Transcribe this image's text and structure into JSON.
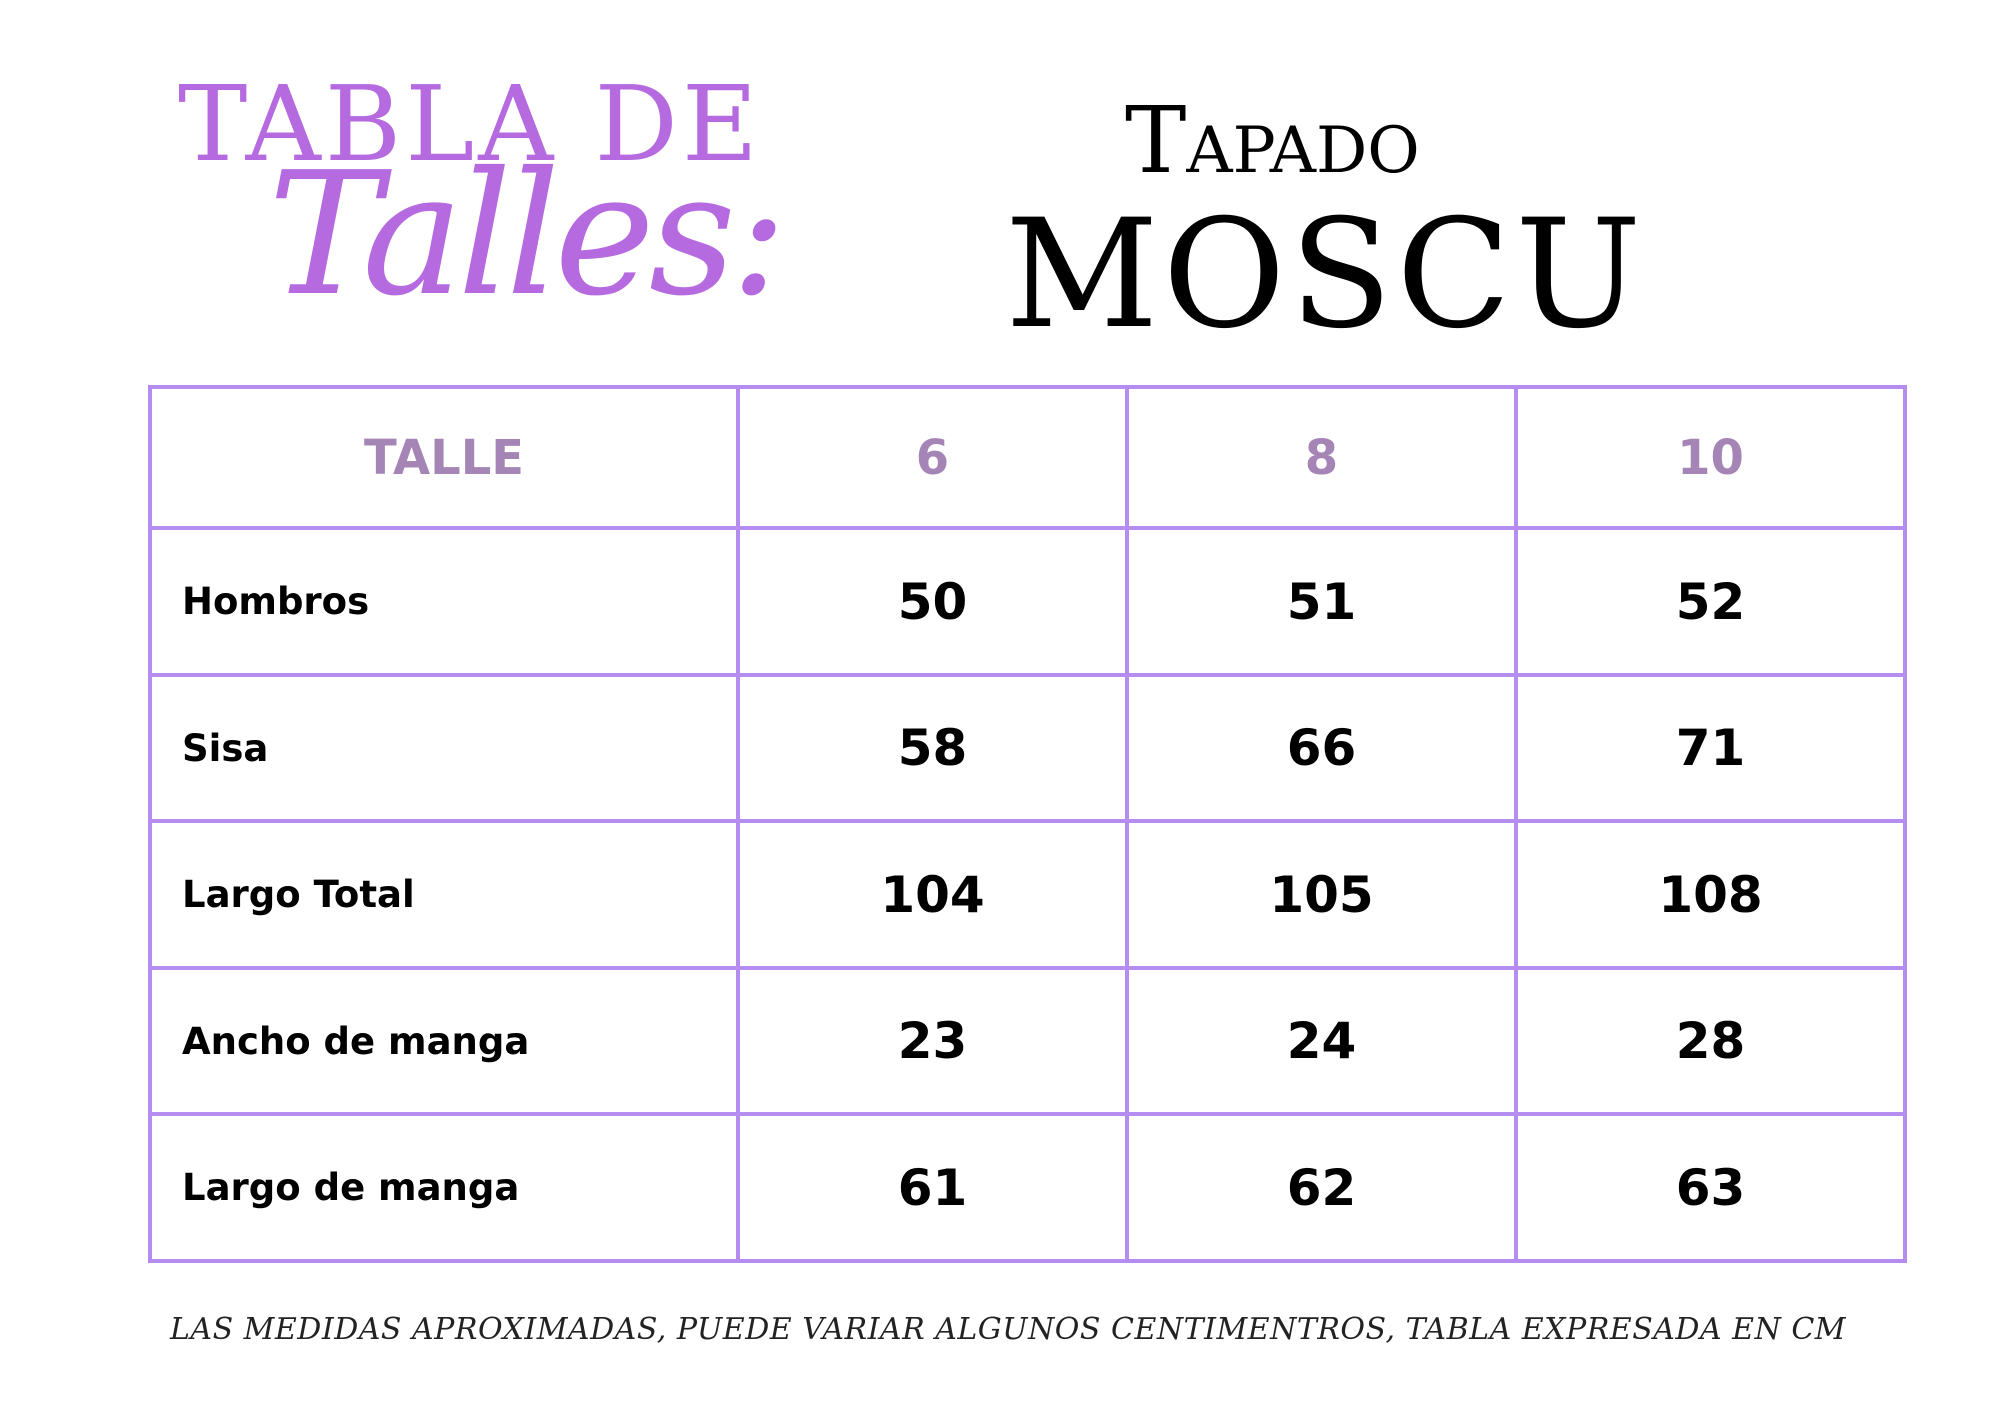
{
  "header": {
    "title_line1": "TABLA DE",
    "title_line2": "Talles:",
    "product_line1": "Tapado",
    "product_line2": "MOSCU"
  },
  "table": {
    "columns": [
      "TALLE",
      "6",
      "8",
      "10"
    ],
    "rows": [
      {
        "label": "Hombros",
        "values": [
          "50",
          "51",
          "52"
        ]
      },
      {
        "label": "Sisa",
        "values": [
          "58",
          "66",
          "71"
        ]
      },
      {
        "label": "Largo Total",
        "values": [
          "104",
          "105",
          "108"
        ]
      },
      {
        "label": "Ancho de manga",
        "values": [
          "23",
          "24",
          "28"
        ]
      },
      {
        "label": "Largo de manga",
        "values": [
          "61",
          "62",
          "63"
        ]
      }
    ]
  },
  "footnote": "LAS MEDIDAS APROXIMADAS, PUEDE VARIAR ALGUNOS CENTIMENTROS, TABLA EXPRESADA EN CM",
  "colors": {
    "accent": "#b56ae0",
    "border": "#b58cf0",
    "header_text": "#a585b6",
    "text": "#000000"
  }
}
